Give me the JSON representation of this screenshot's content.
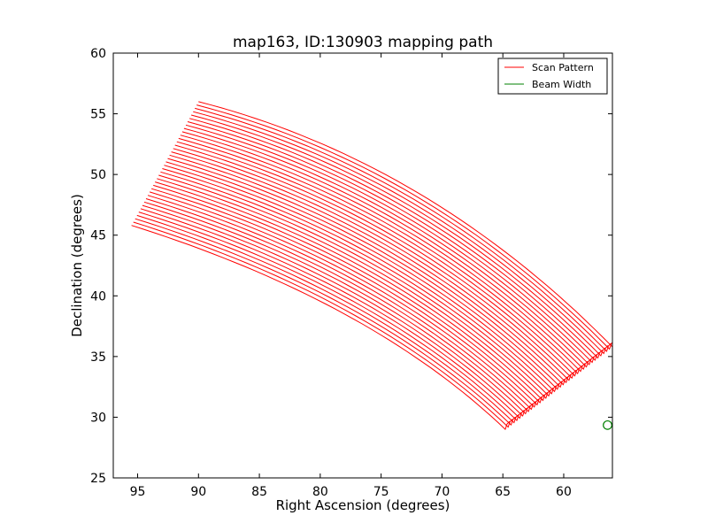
{
  "chart_data": {
    "type": "line",
    "title": "map163, ID:130903 mapping path",
    "xlabel": "Right Ascension (degrees)",
    "ylabel": "Declination (degrees)",
    "xlim": [
      97,
      56
    ],
    "ylim": [
      25,
      60
    ],
    "xticks": [
      95,
      90,
      85,
      80,
      75,
      70,
      65,
      60
    ],
    "yticks": [
      25,
      30,
      35,
      40,
      45,
      50,
      55,
      60
    ],
    "legend_position": "top-right",
    "series": [
      {
        "name": "Scan Pattern",
        "color": "#ff0000",
        "num_lines": 38,
        "first_line": {
          "start": [
            95.5,
            45.8
          ],
          "mid": [
            78,
            38.5
          ],
          "end": [
            64.8,
            29.0
          ]
        },
        "last_line": {
          "start": [
            90.0,
            56.0
          ],
          "mid": [
            72,
            48.5
          ],
          "end": [
            56.0,
            35.8
          ]
        }
      },
      {
        "name": "Beam Width",
        "color": "#008000",
        "marker": "circle",
        "center": [
          56.4,
          29.35
        ],
        "radius_deg": 0.35
      }
    ]
  }
}
